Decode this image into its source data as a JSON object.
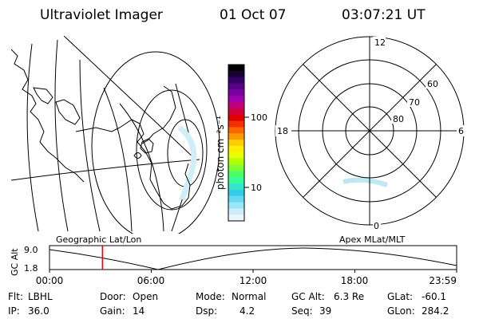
{
  "header": {
    "title": "Ultraviolet Imager",
    "date": "01 Oct 07",
    "time": "03:07:21 UT"
  },
  "colorbar": {
    "unit_label": "photon cm⁻²s⁻¹",
    "tick_labels": [
      "100",
      "10"
    ],
    "colors": [
      "#000000",
      "#1a0033",
      "#330066",
      "#5a0087",
      "#7a00a0",
      "#a000b0",
      "#c0007a",
      "#d0003d",
      "#e00000",
      "#f03000",
      "#ff6600",
      "#ff9900",
      "#ffcc00",
      "#ffee00",
      "#e6ff00",
      "#b3ff00",
      "#80ff33",
      "#4dff66",
      "#33ff99",
      "#33e6cc",
      "#33cce6",
      "#66d9f2",
      "#99e6f7",
      "#cceefa",
      "#e8f6fb"
    ]
  },
  "polar_plot": {
    "mlt_labels": {
      "top": "12",
      "left": "18",
      "right": "6",
      "bottom": "0"
    },
    "lat_labels": [
      "60",
      "70",
      "80"
    ]
  },
  "timeline": {
    "ylabel": "GC Alt",
    "ytick_top": "9.0",
    "ytick_bottom": "1.8",
    "left_caption": "Geographic Lat/Lon",
    "right_caption": "Apex MLat/MLT",
    "xticks": [
      "00:00",
      "06:00",
      "12:00",
      "18:00",
      "23:59"
    ],
    "marker_fraction": 0.13,
    "marker_color": "#ff0000"
  },
  "info": {
    "row1": [
      {
        "label": "Flt:",
        "value": "LBHL"
      },
      {
        "label": "Door:",
        "value": "Open"
      },
      {
        "label": "Mode:",
        "value": "Normal"
      },
      {
        "label": "GC Alt:",
        "value": "6.3 Re"
      },
      {
        "label": "GLat:",
        "value": "-60.1"
      }
    ],
    "row2": [
      {
        "label": "IP:",
        "value": "36.0"
      },
      {
        "label": "Gain:",
        "value": "14"
      },
      {
        "label": "Dsp:",
        "value": "4.2"
      },
      {
        "label": "Seq:",
        "value": "39"
      },
      {
        "label": "GLon:",
        "value": "284.2"
      }
    ]
  }
}
